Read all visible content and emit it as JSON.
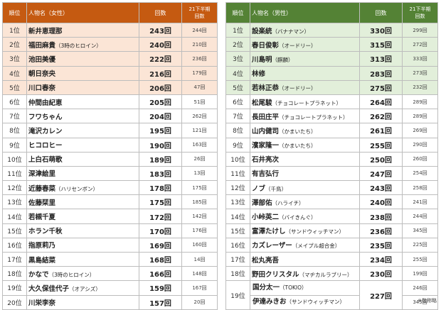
{
  "female": {
    "headers": {
      "rank": "順位",
      "name": "人物名（女性）",
      "score": "回数",
      "prev": "21下半期\n回数"
    },
    "rows": [
      {
        "rank": "1位",
        "name": "新井恵理那",
        "sub": "",
        "score": "243回",
        "prev": "244回"
      },
      {
        "rank": "2位",
        "name": "福田麻貴",
        "sub": "（3時のヒロイン）",
        "score": "240回",
        "prev": "210回"
      },
      {
        "rank": "3位",
        "name": "池田美優",
        "sub": "",
        "score": "222回",
        "prev": "236回"
      },
      {
        "rank": "4位",
        "name": "朝日奈央",
        "sub": "",
        "score": "216回",
        "prev": "179回"
      },
      {
        "rank": "5位",
        "name": "川口春奈",
        "sub": "",
        "score": "206回",
        "prev": "47回"
      },
      {
        "rank": "6位",
        "name": "仲間由紀恵",
        "sub": "",
        "score": "205回",
        "prev": "51回"
      },
      {
        "rank": "7位",
        "name": "フワちゃん",
        "sub": "",
        "score": "204回",
        "prev": "262回"
      },
      {
        "rank": "8位",
        "name": "滝沢カレン",
        "sub": "",
        "score": "195回",
        "prev": "121回"
      },
      {
        "rank": "9位",
        "name": "ヒコロヒー",
        "sub": "",
        "score": "190回",
        "prev": "163回"
      },
      {
        "rank": "10位",
        "name": "上白石萌歌",
        "sub": "",
        "score": "189回",
        "prev": "26回"
      },
      {
        "rank": "11位",
        "name": "深津絵里",
        "sub": "",
        "score": "183回",
        "prev": "13回"
      },
      {
        "rank": "12位",
        "name": "近藤春菜",
        "sub": "（ハリセンボン）",
        "score": "178回",
        "prev": "175回"
      },
      {
        "rank": "13位",
        "name": "佐藤栞里",
        "sub": "",
        "score": "175回",
        "prev": "185回"
      },
      {
        "rank": "14位",
        "name": "若槻千夏",
        "sub": "",
        "score": "172回",
        "prev": "142回"
      },
      {
        "rank": "15位",
        "name": "ホラン千秋",
        "sub": "",
        "score": "170回",
        "prev": "176回"
      },
      {
        "rank": "16位",
        "name": "指原莉乃",
        "sub": "",
        "score": "169回",
        "prev": "160回"
      },
      {
        "rank": "17位",
        "name": "黒島結菜",
        "sub": "",
        "score": "168回",
        "prev": "14回"
      },
      {
        "rank": "18位",
        "name": "かなで",
        "sub": "（3時のヒロイン）",
        "score": "166回",
        "prev": "148回"
      },
      {
        "rank": "19位",
        "name": "大久保佳代子",
        "sub": "（オアシズ）",
        "score": "159回",
        "prev": "167回"
      },
      {
        "rank": "20位",
        "name": "川栄李奈",
        "sub": "",
        "score": "157回",
        "prev": "20回"
      }
    ]
  },
  "male": {
    "headers": {
      "rank": "順位",
      "name": "人物名（男性）",
      "score": "回数",
      "prev": "21下半期\n回数"
    },
    "rows": [
      {
        "rank": "1位",
        "name": "設楽統",
        "sub": "（バナナマン）",
        "score": "330回",
        "prev": "299回"
      },
      {
        "rank": "2位",
        "name": "春日俊彰",
        "sub": "（オードリー）",
        "score": "315回",
        "prev": "272回"
      },
      {
        "rank": "3位",
        "name": "川島明",
        "sub": "（麒麟）",
        "score": "313回",
        "prev": "333回"
      },
      {
        "rank": "4位",
        "name": "林修",
        "sub": "",
        "score": "283回",
        "prev": "273回"
      },
      {
        "rank": "5位",
        "name": "若林正恭",
        "sub": "（オードリー）",
        "score": "275回",
        "prev": "232回"
      },
      {
        "rank": "6位",
        "name": "松尾駿",
        "sub": "（チョコレートプラネット）",
        "score": "264回",
        "prev": "289回"
      },
      {
        "rank": "7位",
        "name": "長田庄平",
        "sub": "（チョコレートプラネット）",
        "score": "262回",
        "prev": "289回"
      },
      {
        "rank": "8位",
        "name": "山内健司",
        "sub": "（かまいたち）",
        "score": "261回",
        "prev": "269回"
      },
      {
        "rank": "9位",
        "name": "濱家隆一",
        "sub": "（かまいたち）",
        "score": "255回",
        "prev": "290回"
      },
      {
        "rank": "10位",
        "name": "石井亮次",
        "sub": "",
        "score": "250回",
        "prev": "260回"
      },
      {
        "rank": "11位",
        "name": "有吉弘行",
        "sub": "",
        "score": "247回",
        "prev": "254回"
      },
      {
        "rank": "12位",
        "name": "ノブ",
        "sub": "（千鳥）",
        "score": "243回",
        "prev": "258回"
      },
      {
        "rank": "13位",
        "name": "澤部佑",
        "sub": "（ハライチ）",
        "score": "240回",
        "prev": "241回"
      },
      {
        "rank": "14位",
        "name": "小峠英二",
        "sub": "（バイきんぐ）",
        "score": "238回",
        "prev": "244回"
      },
      {
        "rank": "15位",
        "name": "富澤たけし",
        "sub": "（サンドウィッチマン）",
        "score": "236回",
        "prev": "345回"
      },
      {
        "rank": "16位",
        "name": "カズレーザー",
        "sub": "（メイプル超合金）",
        "score": "235回",
        "prev": "225回"
      },
      {
        "rank": "17位",
        "name": "松丸亮吾",
        "sub": "",
        "score": "234回",
        "prev": "255回"
      },
      {
        "rank": "18位",
        "name": "野田クリスタル",
        "sub": "（マヂカルラブリー）",
        "score": "230回",
        "prev": "199回"
      }
    ],
    "tie": {
      "rank": "19位",
      "score": "227回",
      "names": [
        {
          "name": "国分太一",
          "sub": "（TOKIO）",
          "prev": "246回"
        },
        {
          "name": "伊達みきお",
          "sub": "（サンドウィッチマン）",
          "prev": "345回"
        }
      ]
    }
  },
  "note": "※敬称略"
}
